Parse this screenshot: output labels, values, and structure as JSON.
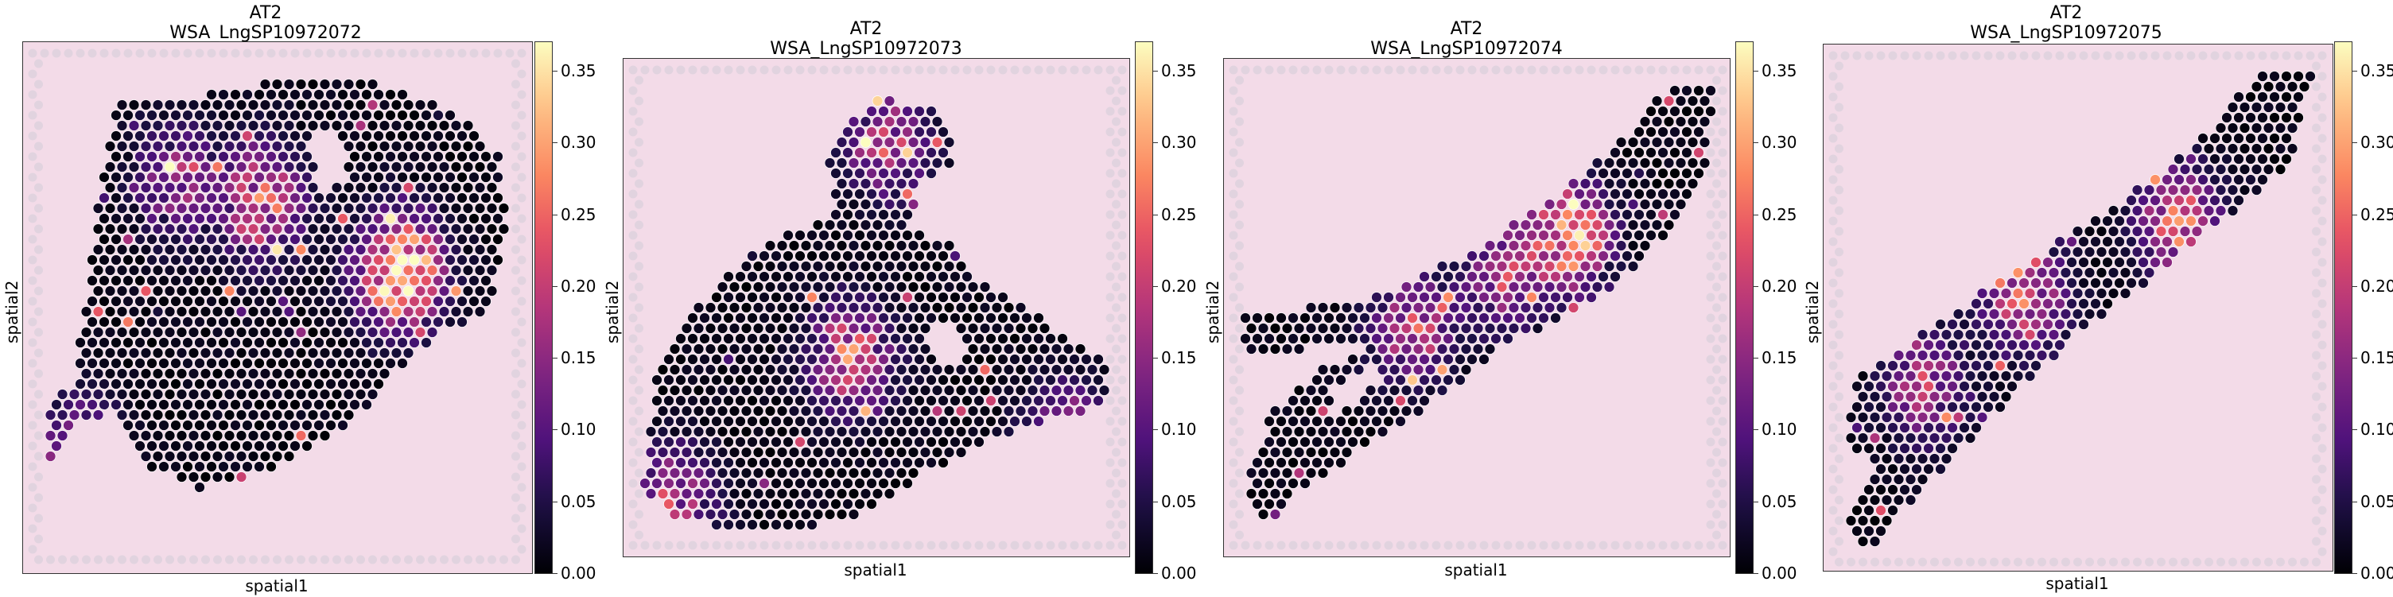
{
  "colorbar": {
    "ticks": [
      "0.00",
      "0.05",
      "0.10",
      "0.15",
      "0.20",
      "0.25",
      "0.30",
      "0.35"
    ],
    "tick_values": [
      0,
      0.05,
      0.1,
      0.15,
      0.2,
      0.25,
      0.3,
      0.35
    ],
    "max": 0.37,
    "colormap": "magma"
  },
  "colors": {
    "tissue_background": "#f3dbe8",
    "tissue_pink": "#e28fb4",
    "empty_spot": "#d8d0dc",
    "spot_outline": "#ffffff"
  },
  "chart_data": [
    {
      "type": "scatter",
      "title": "AT2",
      "subtitle": "WSA_LngSP10972072",
      "xlabel": "spatial1",
      "ylabel": "spatial2",
      "color_range": [
        0,
        0.37
      ],
      "hotspots": [
        {
          "cx": 0.74,
          "cy": 0.43,
          "intensity": 0.35
        },
        {
          "cx": 0.47,
          "cy": 0.3,
          "intensity": 0.22
        },
        {
          "cx": 0.1,
          "cy": 0.78,
          "intensity": 0.18
        },
        {
          "cx": 0.3,
          "cy": 0.26,
          "intensity": 0.14
        }
      ]
    },
    {
      "type": "scatter",
      "title": "AT2",
      "subtitle": "WSA_LngSP10972073",
      "xlabel": "spatial1",
      "ylabel": "spatial2",
      "color_range": [
        0,
        0.37
      ],
      "hotspots": [
        {
          "cx": 0.45,
          "cy": 0.6,
          "intensity": 0.22
        },
        {
          "cx": 0.52,
          "cy": 0.17,
          "intensity": 0.18
        },
        {
          "cx": 0.88,
          "cy": 0.77,
          "intensity": 0.2
        },
        {
          "cx": 0.1,
          "cy": 0.88,
          "intensity": 0.16
        }
      ]
    },
    {
      "type": "scatter",
      "title": "AT2",
      "subtitle": "WSA_LngSP10972074",
      "xlabel": "spatial1",
      "ylabel": "spatial2",
      "color_range": [
        0,
        0.37
      ],
      "hotspots": [
        {
          "cx": 0.68,
          "cy": 0.36,
          "intensity": 0.28
        },
        {
          "cx": 0.37,
          "cy": 0.54,
          "intensity": 0.18
        },
        {
          "cx": 0.55,
          "cy": 0.44,
          "intensity": 0.15
        }
      ]
    },
    {
      "type": "scatter",
      "title": "AT2",
      "subtitle": "WSA_LngSP10972075",
      "xlabel": "spatial1",
      "ylabel": "spatial2",
      "color_range": [
        0,
        0.37
      ],
      "hotspots": [
        {
          "cx": 0.7,
          "cy": 0.34,
          "intensity": 0.22
        },
        {
          "cx": 0.4,
          "cy": 0.48,
          "intensity": 0.2
        },
        {
          "cx": 0.2,
          "cy": 0.65,
          "intensity": 0.16
        }
      ]
    }
  ]
}
